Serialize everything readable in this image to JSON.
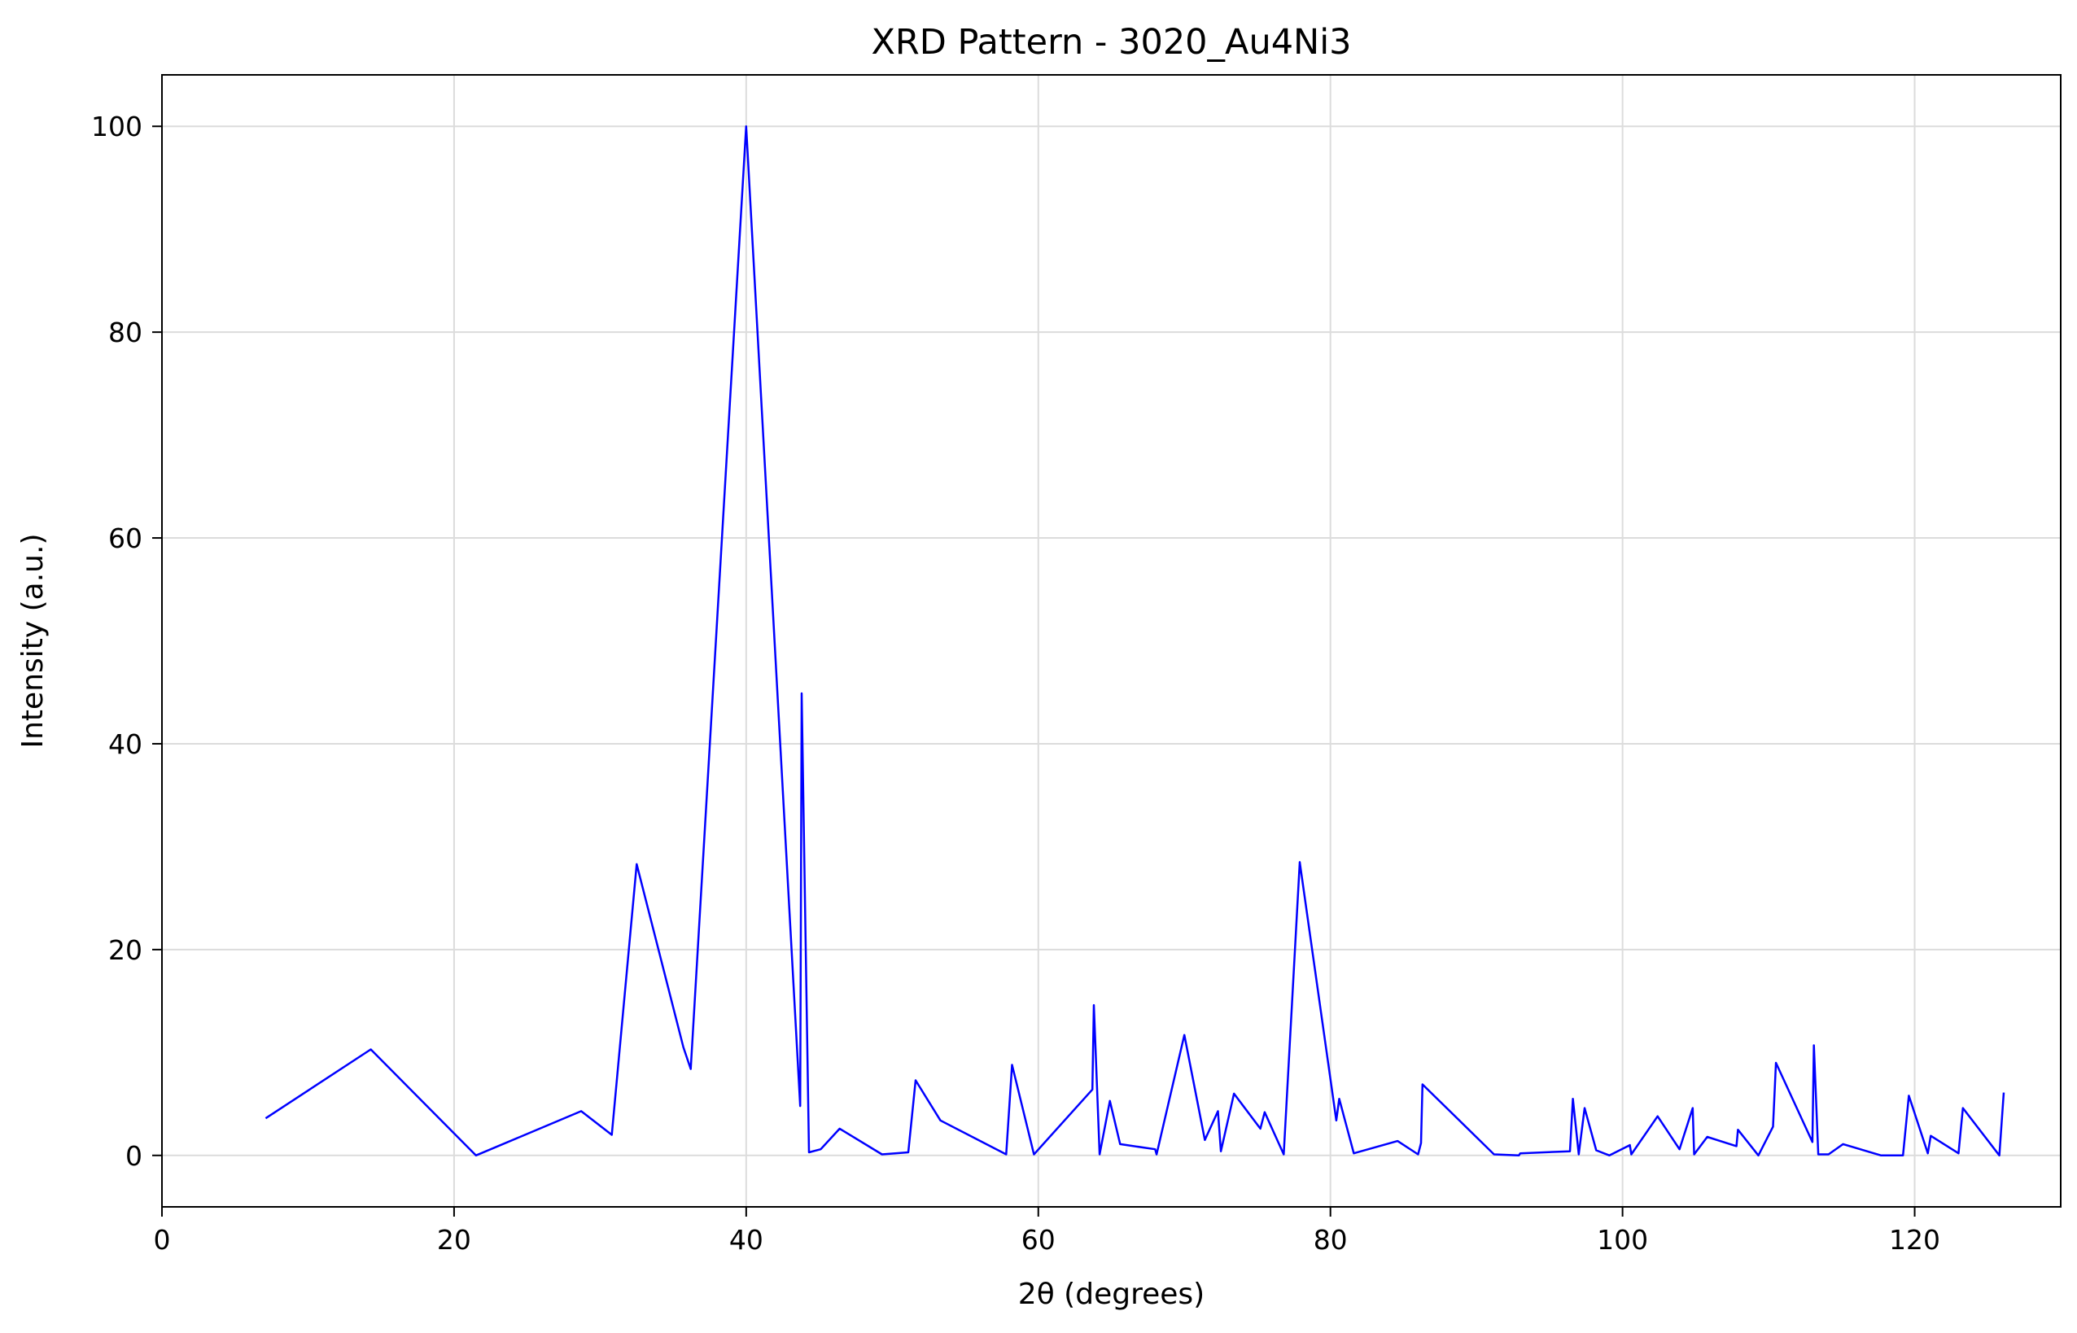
{
  "chart_data": {
    "type": "line",
    "title": "XRD Pattern - 3020_Au4Ni3",
    "xlabel": "2θ (degrees)",
    "ylabel": "Intensity (a.u.)",
    "xlim": [
      0,
      130
    ],
    "ylim": [
      -5,
      105
    ],
    "xticks": [
      0,
      20,
      40,
      60,
      80,
      100,
      120
    ],
    "yticks": [
      0,
      20,
      40,
      60,
      80,
      100
    ],
    "grid": true,
    "series": [
      {
        "color": "#0000ff",
        "x": [
          7.1,
          14.3,
          21.5,
          28.7,
          30.8,
          32.5,
          35.7,
          36.2,
          40.0,
          43.7,
          43.8,
          44.3,
          45.1,
          46.4,
          49.3,
          51.1,
          51.6,
          53.3,
          57.8,
          58.2,
          59.7,
          63.7,
          63.8,
          64.2,
          64.9,
          65.6,
          68.0,
          68.1,
          70.0,
          71.4,
          72.3,
          72.5,
          73.4,
          75.2,
          75.5,
          76.8,
          77.9,
          80.4,
          80.6,
          81.6,
          84.6,
          86.0,
          86.2,
          86.3,
          91.2,
          92.9,
          93.0,
          96.4,
          96.6,
          97.0,
          97.4,
          98.2,
          99.1,
          100.5,
          100.6,
          102.4,
          103.9,
          104.8,
          104.9,
          105.8,
          107.8,
          107.9,
          109.3,
          110.3,
          110.5,
          113.0,
          113.1,
          113.4,
          114.1,
          115.1,
          117.7,
          119.2,
          119.6,
          120.9,
          121.1,
          123.0,
          123.3,
          125.8,
          126.1
        ],
        "y": [
          3.6,
          10.3,
          0.0,
          4.3,
          2.0,
          28.3,
          10.5,
          8.4,
          100.0,
          4.8,
          44.9,
          0.3,
          0.6,
          2.6,
          0.1,
          0.3,
          7.3,
          3.4,
          0.1,
          8.8,
          0.1,
          6.4,
          14.6,
          0.1,
          5.3,
          1.1,
          0.6,
          0.1,
          11.7,
          1.5,
          4.3,
          0.4,
          6.0,
          2.6,
          4.2,
          0.1,
          28.5,
          3.4,
          5.5,
          0.2,
          1.4,
          0.1,
          1.2,
          6.9,
          0.1,
          0.0,
          0.2,
          0.4,
          5.5,
          0.1,
          4.6,
          0.5,
          0.0,
          1.0,
          0.1,
          3.8,
          0.6,
          4.6,
          0.1,
          1.8,
          0.9,
          2.5,
          0.0,
          2.8,
          9.0,
          1.3,
          10.7,
          0.1,
          0.1,
          1.1,
          0.0,
          0.0,
          5.8,
          0.2,
          1.9,
          0.2,
          4.6,
          0.0,
          6.1
        ]
      }
    ]
  }
}
